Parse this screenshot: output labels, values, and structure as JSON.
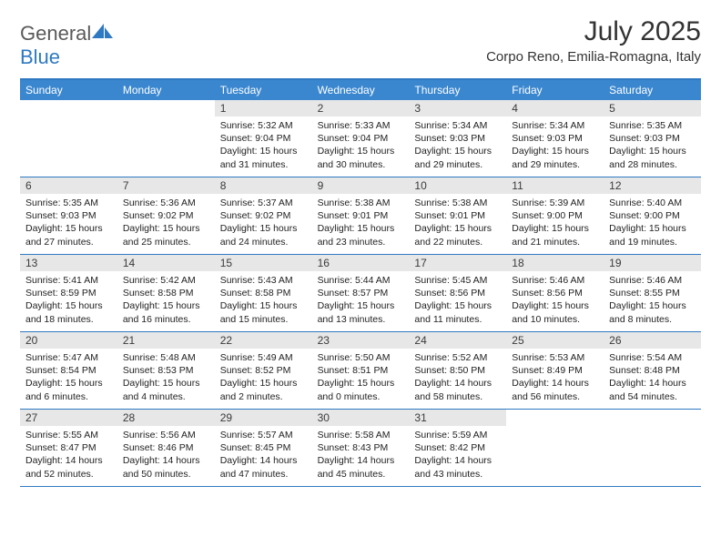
{
  "logo": {
    "general": "General",
    "blue": "Blue"
  },
  "title": "July 2025",
  "location": "Corpo Reno, Emilia-Romagna, Italy",
  "colors": {
    "header_bar": "#3a87cf",
    "header_border": "#2f79c2",
    "daynum_bg": "#e7e7e7",
    "text": "#222222",
    "logo_gray": "#5a5a5a",
    "logo_blue": "#2f79c2"
  },
  "day_names": [
    "Sunday",
    "Monday",
    "Tuesday",
    "Wednesday",
    "Thursday",
    "Friday",
    "Saturday"
  ],
  "weeks": [
    [
      {
        "blank": true
      },
      {
        "blank": true
      },
      {
        "n": "1",
        "sr": "Sunrise: 5:32 AM",
        "ss": "Sunset: 9:04 PM",
        "d1": "Daylight: 15 hours",
        "d2": "and 31 minutes."
      },
      {
        "n": "2",
        "sr": "Sunrise: 5:33 AM",
        "ss": "Sunset: 9:04 PM",
        "d1": "Daylight: 15 hours",
        "d2": "and 30 minutes."
      },
      {
        "n": "3",
        "sr": "Sunrise: 5:34 AM",
        "ss": "Sunset: 9:03 PM",
        "d1": "Daylight: 15 hours",
        "d2": "and 29 minutes."
      },
      {
        "n": "4",
        "sr": "Sunrise: 5:34 AM",
        "ss": "Sunset: 9:03 PM",
        "d1": "Daylight: 15 hours",
        "d2": "and 29 minutes."
      },
      {
        "n": "5",
        "sr": "Sunrise: 5:35 AM",
        "ss": "Sunset: 9:03 PM",
        "d1": "Daylight: 15 hours",
        "d2": "and 28 minutes."
      }
    ],
    [
      {
        "n": "6",
        "sr": "Sunrise: 5:35 AM",
        "ss": "Sunset: 9:03 PM",
        "d1": "Daylight: 15 hours",
        "d2": "and 27 minutes."
      },
      {
        "n": "7",
        "sr": "Sunrise: 5:36 AM",
        "ss": "Sunset: 9:02 PM",
        "d1": "Daylight: 15 hours",
        "d2": "and 25 minutes."
      },
      {
        "n": "8",
        "sr": "Sunrise: 5:37 AM",
        "ss": "Sunset: 9:02 PM",
        "d1": "Daylight: 15 hours",
        "d2": "and 24 minutes."
      },
      {
        "n": "9",
        "sr": "Sunrise: 5:38 AM",
        "ss": "Sunset: 9:01 PM",
        "d1": "Daylight: 15 hours",
        "d2": "and 23 minutes."
      },
      {
        "n": "10",
        "sr": "Sunrise: 5:38 AM",
        "ss": "Sunset: 9:01 PM",
        "d1": "Daylight: 15 hours",
        "d2": "and 22 minutes."
      },
      {
        "n": "11",
        "sr": "Sunrise: 5:39 AM",
        "ss": "Sunset: 9:00 PM",
        "d1": "Daylight: 15 hours",
        "d2": "and 21 minutes."
      },
      {
        "n": "12",
        "sr": "Sunrise: 5:40 AM",
        "ss": "Sunset: 9:00 PM",
        "d1": "Daylight: 15 hours",
        "d2": "and 19 minutes."
      }
    ],
    [
      {
        "n": "13",
        "sr": "Sunrise: 5:41 AM",
        "ss": "Sunset: 8:59 PM",
        "d1": "Daylight: 15 hours",
        "d2": "and 18 minutes."
      },
      {
        "n": "14",
        "sr": "Sunrise: 5:42 AM",
        "ss": "Sunset: 8:58 PM",
        "d1": "Daylight: 15 hours",
        "d2": "and 16 minutes."
      },
      {
        "n": "15",
        "sr": "Sunrise: 5:43 AM",
        "ss": "Sunset: 8:58 PM",
        "d1": "Daylight: 15 hours",
        "d2": "and 15 minutes."
      },
      {
        "n": "16",
        "sr": "Sunrise: 5:44 AM",
        "ss": "Sunset: 8:57 PM",
        "d1": "Daylight: 15 hours",
        "d2": "and 13 minutes."
      },
      {
        "n": "17",
        "sr": "Sunrise: 5:45 AM",
        "ss": "Sunset: 8:56 PM",
        "d1": "Daylight: 15 hours",
        "d2": "and 11 minutes."
      },
      {
        "n": "18",
        "sr": "Sunrise: 5:46 AM",
        "ss": "Sunset: 8:56 PM",
        "d1": "Daylight: 15 hours",
        "d2": "and 10 minutes."
      },
      {
        "n": "19",
        "sr": "Sunrise: 5:46 AM",
        "ss": "Sunset: 8:55 PM",
        "d1": "Daylight: 15 hours",
        "d2": "and 8 minutes."
      }
    ],
    [
      {
        "n": "20",
        "sr": "Sunrise: 5:47 AM",
        "ss": "Sunset: 8:54 PM",
        "d1": "Daylight: 15 hours",
        "d2": "and 6 minutes."
      },
      {
        "n": "21",
        "sr": "Sunrise: 5:48 AM",
        "ss": "Sunset: 8:53 PM",
        "d1": "Daylight: 15 hours",
        "d2": "and 4 minutes."
      },
      {
        "n": "22",
        "sr": "Sunrise: 5:49 AM",
        "ss": "Sunset: 8:52 PM",
        "d1": "Daylight: 15 hours",
        "d2": "and 2 minutes."
      },
      {
        "n": "23",
        "sr": "Sunrise: 5:50 AM",
        "ss": "Sunset: 8:51 PM",
        "d1": "Daylight: 15 hours",
        "d2": "and 0 minutes."
      },
      {
        "n": "24",
        "sr": "Sunrise: 5:52 AM",
        "ss": "Sunset: 8:50 PM",
        "d1": "Daylight: 14 hours",
        "d2": "and 58 minutes."
      },
      {
        "n": "25",
        "sr": "Sunrise: 5:53 AM",
        "ss": "Sunset: 8:49 PM",
        "d1": "Daylight: 14 hours",
        "d2": "and 56 minutes."
      },
      {
        "n": "26",
        "sr": "Sunrise: 5:54 AM",
        "ss": "Sunset: 8:48 PM",
        "d1": "Daylight: 14 hours",
        "d2": "and 54 minutes."
      }
    ],
    [
      {
        "n": "27",
        "sr": "Sunrise: 5:55 AM",
        "ss": "Sunset: 8:47 PM",
        "d1": "Daylight: 14 hours",
        "d2": "and 52 minutes."
      },
      {
        "n": "28",
        "sr": "Sunrise: 5:56 AM",
        "ss": "Sunset: 8:46 PM",
        "d1": "Daylight: 14 hours",
        "d2": "and 50 minutes."
      },
      {
        "n": "29",
        "sr": "Sunrise: 5:57 AM",
        "ss": "Sunset: 8:45 PM",
        "d1": "Daylight: 14 hours",
        "d2": "and 47 minutes."
      },
      {
        "n": "30",
        "sr": "Sunrise: 5:58 AM",
        "ss": "Sunset: 8:43 PM",
        "d1": "Daylight: 14 hours",
        "d2": "and 45 minutes."
      },
      {
        "n": "31",
        "sr": "Sunrise: 5:59 AM",
        "ss": "Sunset: 8:42 PM",
        "d1": "Daylight: 14 hours",
        "d2": "and 43 minutes."
      },
      {
        "blank": true
      },
      {
        "blank": true
      }
    ]
  ]
}
